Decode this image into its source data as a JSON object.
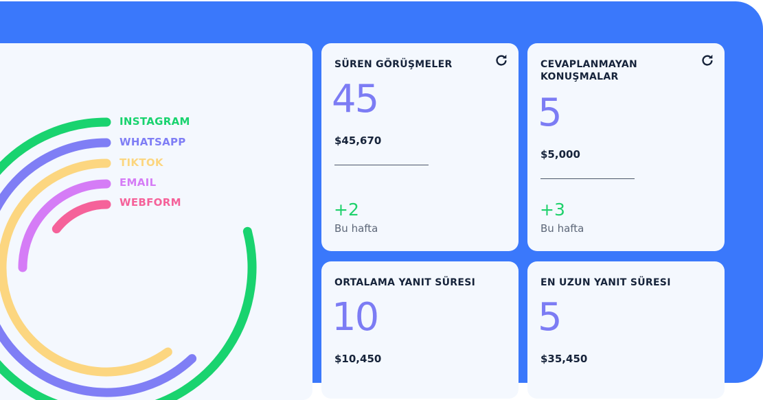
{
  "channels": [
    {
      "label": "INSTAGRAM",
      "color": "#19d36f",
      "fraction": 0.79
    },
    {
      "label": "WHATSAPP",
      "color": "#7f7ef5",
      "fraction": 0.62
    },
    {
      "label": "TIKTOK",
      "color": "#fcd680",
      "fraction": 0.6
    },
    {
      "label": "EMAIL",
      "color": "#d57cf6",
      "fraction": 0.25
    },
    {
      "label": "WEBFORM",
      "color": "#f5629a",
      "fraction": 0.145
    }
  ],
  "cards": [
    {
      "title": "SÜREN GÖRÜŞMELER",
      "value": "45",
      "amount": "$45,670",
      "delta": "+2",
      "period": "Bu hafta",
      "icon": "refresh-icon"
    },
    {
      "title": "CEVAPLANMAYAN KONUŞMALAR",
      "value": "5",
      "amount": "$5,000",
      "delta": "+3",
      "period": "Bu hafta",
      "icon": "refresh-icon"
    },
    {
      "title": "ORTALAMA YANIT SÜRESI",
      "value": "10",
      "amount": "$10,450"
    },
    {
      "title": "EN UZUN YANIT SÜRESI",
      "value": "5",
      "amount": "$35,450"
    }
  ],
  "colors": {
    "background": "#3a78fb",
    "card": "#f4f8fe",
    "accent": "#7c7cf4",
    "positive": "#1ed16b"
  }
}
